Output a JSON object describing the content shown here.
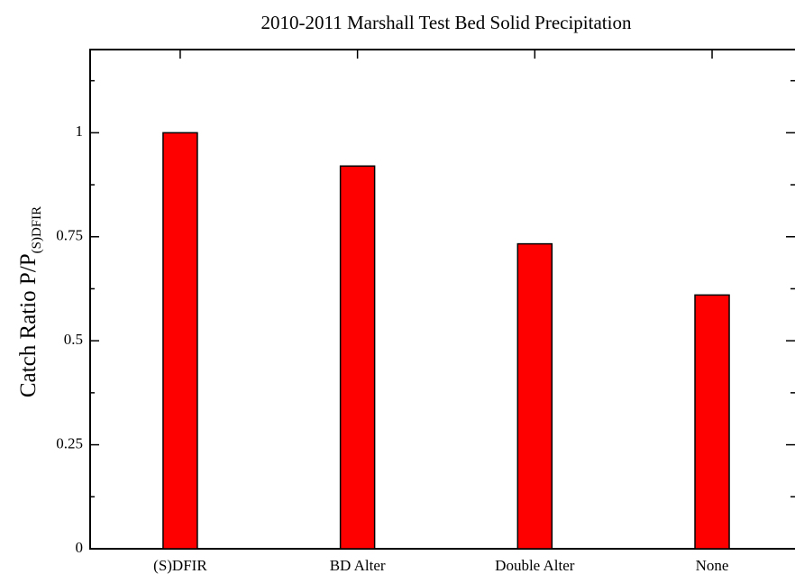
{
  "chart_data": {
    "type": "bar",
    "title": "2010-2011 Marshall Test Bed Solid Precipitation",
    "ylabel": {
      "text": "Catch Ratio P/P",
      "subscript": "(S)DFIR"
    },
    "categories": [
      "(S)DFIR",
      "BD Alter",
      "Double Alter",
      "None"
    ],
    "values": [
      1.0,
      0.92,
      0.733,
      0.61
    ],
    "color": "#ff0000",
    "ylim": [
      0,
      1.2
    ],
    "yticks": [
      0,
      0.25,
      0.5,
      0.75,
      1
    ],
    "yminorticks": [
      0.125,
      0.375,
      0.625,
      0.875,
      1.125
    ],
    "grid": false
  }
}
